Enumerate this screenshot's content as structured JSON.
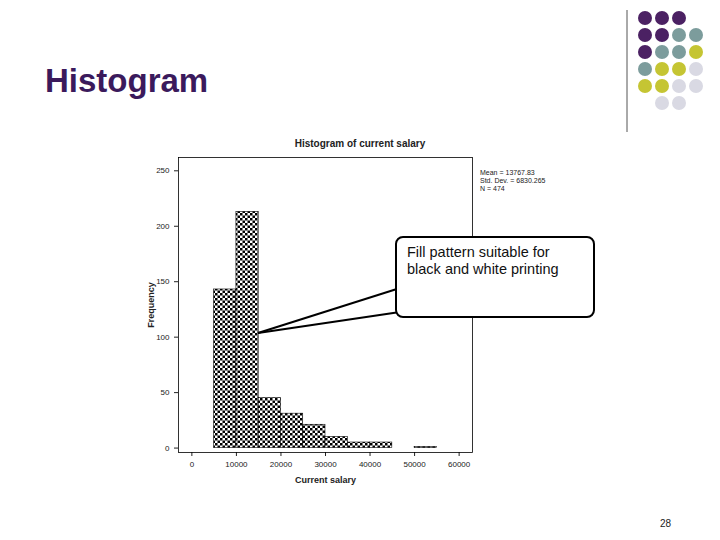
{
  "slide": {
    "title": "Histogram",
    "page_number": "28",
    "callout": "Fill pattern suitable for black and white printing"
  },
  "chart_data": {
    "type": "histogram",
    "title": "Histogram of current salary",
    "x_label": "Current salary",
    "y_label": "Frequency",
    "bins": [
      5000,
      10000,
      15000,
      20000,
      25000,
      30000,
      35000,
      40000,
      45000,
      50000,
      55000
    ],
    "values": [
      143,
      213,
      45,
      31,
      21,
      10,
      5,
      5,
      0,
      1
    ],
    "color": "#000000",
    "xlim": [
      -3000,
      63000
    ],
    "ylim": [
      -4,
      262
    ],
    "xticks": [
      0,
      10000,
      20000,
      30000,
      40000,
      50000,
      60000
    ],
    "yticks": [
      0,
      50,
      100,
      150,
      200,
      250
    ],
    "grid": false,
    "annotations": [
      "Mean = 13767.83",
      "Std. Dev. = 6830.265",
      "N = 474"
    ]
  }
}
